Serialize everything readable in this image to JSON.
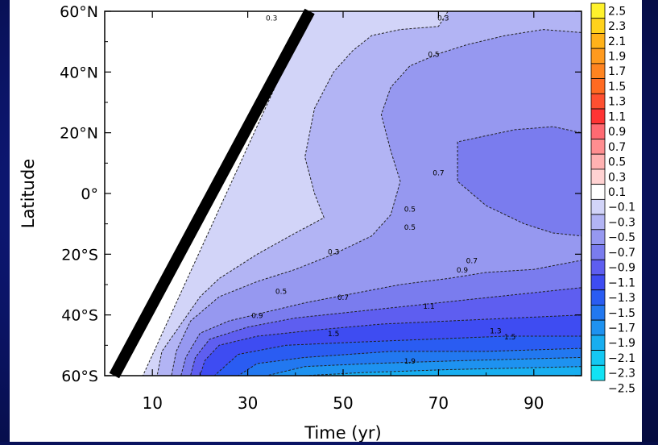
{
  "chart_data": {
    "type": "heatmap",
    "xlabel": "Time (yr)",
    "ylabel": "Latitude",
    "xlim": [
      0,
      100
    ],
    "ylim": [
      -60,
      60
    ],
    "x_ticks": [
      {
        "value": 10,
        "label": "10"
      },
      {
        "value": 30,
        "label": "30"
      },
      {
        "value": 50,
        "label": "50"
      },
      {
        "value": 70,
        "label": "70"
      },
      {
        "value": 90,
        "label": "90"
      }
    ],
    "y_ticks": [
      {
        "value": 60,
        "label": "60°N"
      },
      {
        "value": 40,
        "label": "40°N"
      },
      {
        "value": 20,
        "label": "20°N"
      },
      {
        "value": 0,
        "label": "0°"
      },
      {
        "value": -20,
        "label": "20°S"
      },
      {
        "value": -40,
        "label": "40°S"
      },
      {
        "value": -60,
        "label": "60°S"
      }
    ],
    "colorbar": {
      "levels": [
        "2.5",
        "2.3",
        "2.1",
        "1.9",
        "1.7",
        "1.5",
        "1.3",
        "1.1",
        "0.9",
        "0.7",
        "0.5",
        "0.3",
        "0.1",
        "−0.1",
        "−0.3",
        "−0.5",
        "−0.7",
        "−0.9",
        "−1.1",
        "−1.3",
        "−1.5",
        "−1.7",
        "−1.9",
        "−2.1",
        "−2.3",
        "−2.5"
      ],
      "colors": [
        "#fff22c",
        "#ffd21c",
        "#ffb21a",
        "#ff9a1e",
        "#ff8420",
        "#ff6a22",
        "#ff5030",
        "#ff3434",
        "#ff6a72",
        "#ff8e90",
        "#ffb2b2",
        "#ffd2d2",
        "#ffffff",
        "#d2d4f8",
        "#b2b4f4",
        "#9698f0",
        "#7a7cee",
        "#5e5ef0",
        "#3e4cf2",
        "#2a5cf2",
        "#2278f0",
        "#1e92f0",
        "#18aef0",
        "#14c8f2",
        "#12e2f4"
      ]
    },
    "shading_bands": [
      {
        "value": -0.3,
        "points": [
          [
            8,
            -60
          ],
          [
            100,
            -60
          ],
          [
            100,
            60
          ],
          [
            43,
            60
          ]
        ]
      },
      {
        "value": -0.5,
        "points": [
          [
            11,
            -60
          ],
          [
            100,
            -60
          ],
          [
            100,
            60
          ],
          [
            72,
            60
          ],
          [
            70,
            55
          ],
          [
            62,
            54
          ],
          [
            56,
            52
          ],
          [
            52,
            47
          ],
          [
            48,
            40
          ],
          [
            44,
            28
          ],
          [
            42,
            12
          ],
          [
            44,
            0
          ],
          [
            46,
            -8
          ],
          [
            40,
            -13
          ],
          [
            32,
            -20
          ],
          [
            24,
            -28
          ],
          [
            20,
            -34
          ],
          [
            16,
            -43
          ],
          [
            12,
            -52
          ]
        ]
      },
      {
        "value": -0.7,
        "points": [
          [
            14,
            -60
          ],
          [
            100,
            -60
          ],
          [
            100,
            53
          ],
          [
            92,
            54
          ],
          [
            84,
            52
          ],
          [
            76,
            49
          ],
          [
            70,
            46
          ],
          [
            64,
            42
          ],
          [
            60,
            35
          ],
          [
            58,
            26
          ],
          [
            60,
            14
          ],
          [
            62,
            4
          ],
          [
            60,
            -7
          ],
          [
            56,
            -14
          ],
          [
            48,
            -20
          ],
          [
            40,
            -25
          ],
          [
            32,
            -29
          ],
          [
            24,
            -34
          ],
          [
            18,
            -42
          ],
          [
            15,
            -52
          ]
        ]
      },
      {
        "value": -0.9,
        "points": [
          [
            16,
            -60
          ],
          [
            100,
            -60
          ],
          [
            100,
            20
          ],
          [
            94,
            22
          ],
          [
            86,
            21
          ],
          [
            80,
            19
          ],
          [
            74,
            17
          ],
          [
            74,
            4
          ],
          [
            80,
            -4
          ],
          [
            88,
            -10
          ],
          [
            94,
            -13
          ],
          [
            100,
            -14
          ],
          [
            100,
            -22
          ],
          [
            90,
            -25
          ],
          [
            80,
            -26
          ],
          [
            72,
            -28
          ],
          [
            62,
            -30
          ],
          [
            52,
            -33
          ],
          [
            42,
            -36
          ],
          [
            34,
            -39
          ],
          [
            26,
            -42
          ],
          [
            20,
            -46
          ],
          [
            17,
            -54
          ]
        ]
      },
      {
        "value": -1.1,
        "points": [
          [
            18,
            -60
          ],
          [
            100,
            -60
          ],
          [
            100,
            -31
          ],
          [
            88,
            -33
          ],
          [
            76,
            -35
          ],
          [
            64,
            -37
          ],
          [
            52,
            -39
          ],
          [
            40,
            -41
          ],
          [
            30,
            -44
          ],
          [
            22,
            -48
          ],
          [
            19,
            -54
          ]
        ]
      },
      {
        "value": -1.3,
        "points": [
          [
            20,
            -60
          ],
          [
            100,
            -60
          ],
          [
            100,
            -40
          ],
          [
            86,
            -41
          ],
          [
            72,
            -42
          ],
          [
            58,
            -43
          ],
          [
            44,
            -45
          ],
          [
            32,
            -47
          ],
          [
            24,
            -50
          ],
          [
            21,
            -55
          ]
        ]
      },
      {
        "value": -1.5,
        "points": [
          [
            23,
            -60
          ],
          [
            100,
            -60
          ],
          [
            100,
            -47
          ],
          [
            84,
            -47
          ],
          [
            68,
            -48
          ],
          [
            52,
            -49
          ],
          [
            38,
            -50
          ],
          [
            28,
            -53
          ]
        ]
      },
      {
        "value": -1.7,
        "points": [
          [
            28,
            -60
          ],
          [
            100,
            -60
          ],
          [
            100,
            -51
          ],
          [
            80,
            -52
          ],
          [
            60,
            -52
          ],
          [
            42,
            -54
          ],
          [
            32,
            -56
          ]
        ]
      },
      {
        "value": -1.9,
        "points": [
          [
            34,
            -60
          ],
          [
            100,
            -60
          ],
          [
            100,
            -54
          ],
          [
            76,
            -55
          ],
          [
            56,
            -56
          ],
          [
            42,
            -57
          ]
        ]
      },
      {
        "value": -2.1,
        "points": [
          [
            42,
            -60
          ],
          [
            100,
            -60
          ],
          [
            100,
            -57
          ],
          [
            72,
            -58
          ],
          [
            54,
            -59
          ]
        ]
      }
    ],
    "contour_labels": [
      {
        "x": 35,
        "y": 57,
        "text": "0.3"
      },
      {
        "x": 71,
        "y": 57,
        "text": "0.3"
      },
      {
        "x": 69,
        "y": 45,
        "text": "0.5"
      },
      {
        "x": 70,
        "y": 6,
        "text": "0.7"
      },
      {
        "x": 64,
        "y": -6,
        "text": "0.5"
      },
      {
        "x": 64,
        "y": -12,
        "text": "0.5"
      },
      {
        "x": 48,
        "y": -20,
        "text": "0.3"
      },
      {
        "x": 77,
        "y": -23,
        "text": "0.7"
      },
      {
        "x": 75,
        "y": -26,
        "text": "0.9"
      },
      {
        "x": 37,
        "y": -33,
        "text": "0.5"
      },
      {
        "x": 50,
        "y": -35,
        "text": "0.7"
      },
      {
        "x": 32,
        "y": -41,
        "text": "0.9"
      },
      {
        "x": 68,
        "y": -38,
        "text": "1.1"
      },
      {
        "x": 48,
        "y": -47,
        "text": "1.5"
      },
      {
        "x": 82,
        "y": -46,
        "text": "1.3"
      },
      {
        "x": 85,
        "y": -48,
        "text": "1.5"
      },
      {
        "x": 64,
        "y": -56,
        "text": "1.9"
      }
    ],
    "overlay_line": {
      "from": [
        2,
        -60
      ],
      "to": [
        43,
        60
      ]
    },
    "grid": false
  }
}
